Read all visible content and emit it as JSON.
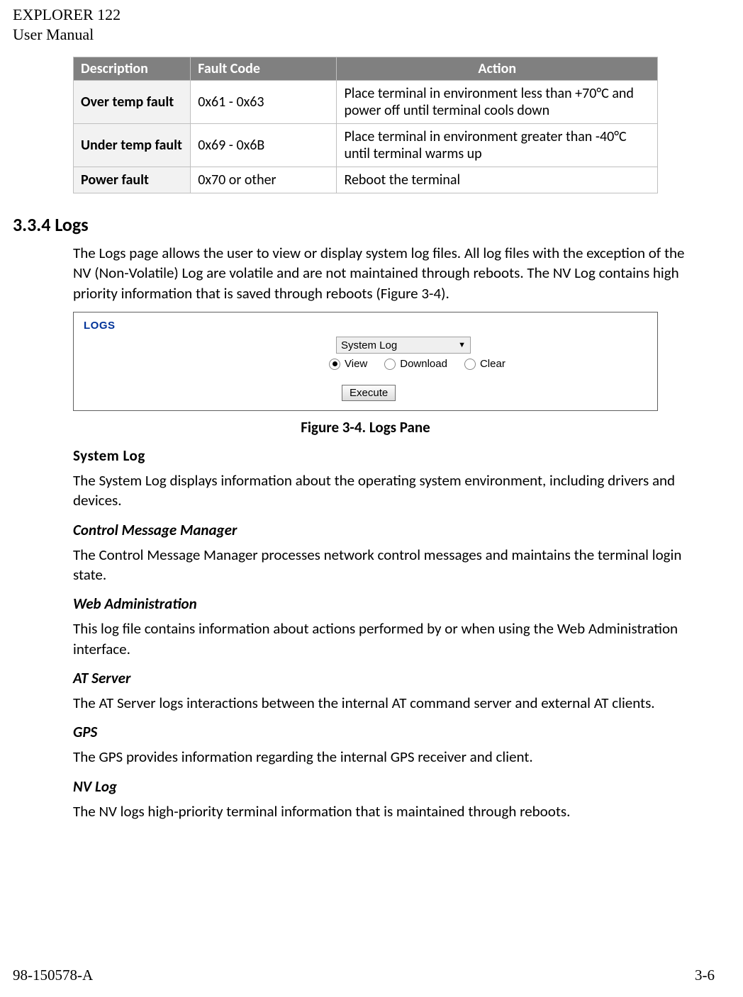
{
  "header": {
    "line1": "EXPLORER 122",
    "line2": "User Manual"
  },
  "fault_table": {
    "columns": [
      "Description",
      "Fault Code",
      "Action"
    ],
    "rows": [
      {
        "desc": "Over temp fault",
        "code": "0x61 - 0x63",
        "action": "Place terminal in environment less than +70°C and power off until terminal cools down"
      },
      {
        "desc": "Under temp fault",
        "code": "0x69 - 0x6B",
        "action": "Place terminal in environment greater than -40°C until terminal warms up"
      },
      {
        "desc": "Power fault",
        "code": "0x70 or other",
        "action": "Reboot the terminal"
      }
    ],
    "header_bg": "#808080",
    "header_fg": "#ffffff",
    "desc_bg": "#f2f2f2",
    "border_color": "#bfbfbf"
  },
  "section": {
    "number": "3.3.4",
    "title": "Logs",
    "intro": "The Logs page allows the user to view or display system log files. All log files with the exception of the NV (Non-Volatile) Log are volatile and are not maintained through reboots. The NV Log contains high priority information that is saved through reboots (Figure 3-4)."
  },
  "logs_pane": {
    "panel_title": "LOGS",
    "select_value": "System Log",
    "radios": {
      "view": "View",
      "download": "Download",
      "clear": "Clear",
      "selected": "view"
    },
    "button": "Execute",
    "title_color": "#003399",
    "border_color": "#5f5f5f"
  },
  "figure_caption": "Figure 3-4. Logs Pane",
  "sections": {
    "system_log": {
      "heading": "System Log",
      "body": "The System Log displays information about the operating system environment, including drivers and devices."
    },
    "cmm": {
      "heading": "Control Message Manager",
      "body": "The Control Message Manager processes network control messages and maintains the terminal login state."
    },
    "web_admin": {
      "heading": "Web Administration",
      "body": "This log file contains information about actions performed by or when using the Web Administration interface."
    },
    "at_server": {
      "heading": "AT Server",
      "body": "The AT Server logs interactions between the internal AT command server and external AT clients."
    },
    "gps": {
      "heading": "GPS",
      "body": "The GPS provides information regarding the internal GPS receiver and client."
    },
    "nv_log": {
      "heading": "NV Log",
      "body": "The NV logs high-priority terminal information that is maintained through reboots."
    }
  },
  "footer": {
    "left": "98-150578-A",
    "right": "3-6"
  }
}
